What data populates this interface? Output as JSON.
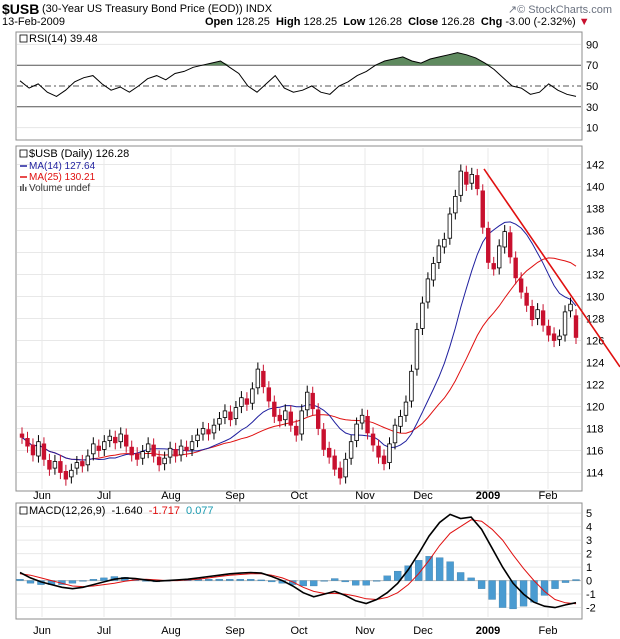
{
  "header": {
    "symbol": "$USB",
    "description": "(30-Year US Treasury Bond Price (EOD))",
    "exchange": "INDX",
    "watermark": "© StockCharts.com",
    "date": "13-Feb-2009",
    "open_label": "Open",
    "open": "128.25",
    "high_label": "High",
    "high": "128.25",
    "low_label": "Low",
    "low": "126.28",
    "close_label": "Close",
    "close": "126.28",
    "chg_label": "Chg",
    "chg": "-3.00 (-2.32%)"
  },
  "colors": {
    "up": "#000000",
    "down": "#c8102e",
    "ma14": "#1f1f9e",
    "ma25": "#e01010",
    "trendline": "#e01010",
    "rsi_fill": "#5f8a5f",
    "histogram": "#4a9bd1",
    "macd_signal": "#e01010",
    "macd_hist_legend": "#1a9ab0"
  },
  "chart_data": [
    {
      "type": "line",
      "panel": "rsi",
      "legend": "RSI(14) 39.48",
      "ylim": [
        0,
        100
      ],
      "yticks": [
        10,
        30,
        50,
        70,
        90
      ],
      "levels": [
        30,
        50,
        70
      ],
      "x": [
        0,
        3,
        6,
        9,
        12,
        15,
        18,
        21,
        24,
        27,
        30,
        33,
        36,
        39,
        42,
        45,
        48,
        51,
        54,
        57,
        60,
        63,
        66,
        69,
        72,
        75,
        78,
        81,
        84,
        87,
        90,
        93,
        96,
        99,
        102,
        105,
        108,
        111,
        114,
        117,
        120,
        123,
        126,
        129,
        132,
        135,
        138,
        141,
        144,
        147,
        150,
        153,
        156,
        159,
        162,
        165,
        168,
        171,
        174,
        177,
        180,
        183
      ],
      "values": [
        55,
        48,
        52,
        44,
        40,
        46,
        54,
        58,
        60,
        52,
        46,
        49,
        44,
        50,
        57,
        60,
        56,
        62,
        64,
        68,
        70,
        72,
        74,
        68,
        62,
        50,
        44,
        52,
        60,
        48,
        44,
        46,
        50,
        44,
        42,
        50,
        54,
        60,
        64,
        70,
        74,
        76,
        78,
        74,
        72,
        76,
        78,
        80,
        82,
        80,
        77,
        72,
        66,
        58,
        50,
        48,
        42,
        44,
        52,
        46,
        42,
        40
      ],
      "date_start": "2008-05-15"
    },
    {
      "type": "candlestick",
      "panel": "price",
      "title": "$USB (Daily) 126.28",
      "ylim": [
        112.5,
        143.5
      ],
      "yticks": [
        114,
        116,
        118,
        120,
        122,
        124,
        126,
        128,
        130,
        132,
        134,
        136,
        138,
        140,
        142
      ],
      "xticks": [
        "Jun",
        "Jul",
        "Aug",
        "Sep",
        "Oct",
        "Nov",
        "Dec",
        "2009",
        "Feb"
      ],
      "legend": [
        {
          "label": "$USB (Daily) 126.28"
        },
        {
          "label": "MA(14) 127.64"
        },
        {
          "label": "MA(25) 130.21"
        },
        {
          "label": "Volume undef"
        }
      ],
      "date_start": "2008-05-15",
      "close": [
        117.2,
        116.4,
        115.6,
        116.8,
        115.2,
        114.3,
        115.0,
        114.0,
        113.4,
        114.2,
        114.9,
        114.6,
        115.5,
        116.6,
        116.0,
        116.8,
        117.3,
        116.7,
        117.5,
        116.4,
        115.6,
        115.2,
        115.9,
        116.6,
        115.5,
        114.7,
        115.3,
        116.2,
        115.5,
        116.4,
        116.0,
        116.8,
        117.4,
        118.0,
        117.5,
        118.3,
        118.9,
        119.6,
        118.8,
        119.9,
        120.8,
        120.2,
        121.6,
        123.4,
        121.8,
        120.5,
        119.1,
        118.7,
        119.6,
        118.3,
        117.4,
        119.6,
        121.3,
        119.8,
        118.0,
        116.1,
        115.4,
        114.3,
        113.5,
        115.2,
        116.8,
        118.4,
        119.2,
        117.6,
        116.5,
        115.4,
        114.8,
        116.6,
        118.3,
        119.1,
        120.4,
        123.2,
        127.0,
        129.4,
        131.6,
        133.0,
        134.6,
        135.2,
        137.5,
        139.1,
        141.4,
        140.2,
        141.1,
        139.8,
        136.3,
        133.1,
        132.5,
        134.6,
        135.9,
        133.6,
        131.7,
        130.4,
        129.2,
        127.9,
        128.8,
        127.4,
        126.5,
        126.0,
        126.4,
        128.6,
        129.3,
        126.28
      ],
      "open": [
        117.5,
        117.1,
        116.5,
        115.5,
        116.6,
        115.1,
        114.4,
        115.0,
        114.1,
        113.6,
        114.4,
        115.0,
        114.7,
        115.7,
        116.4,
        116.1,
        116.9,
        117.2,
        116.8,
        117.4,
        116.3,
        115.7,
        115.3,
        115.9,
        116.5,
        115.4,
        114.8,
        115.4,
        116.1,
        115.6,
        116.3,
        116.1,
        116.9,
        117.5,
        117.9,
        117.6,
        118.4,
        119.0,
        119.5,
        118.9,
        120.0,
        120.7,
        120.3,
        121.7,
        123.2,
        121.7,
        120.4,
        119.2,
        118.8,
        119.5,
        118.2,
        117.5,
        119.7,
        121.2,
        119.7,
        117.9,
        116.2,
        115.5,
        114.4,
        113.6,
        115.3,
        116.9,
        118.5,
        119.1,
        117.5,
        116.4,
        115.5,
        114.9,
        116.7,
        118.2,
        119.2,
        120.5,
        123.4,
        127.1,
        129.5,
        131.5,
        133.1,
        134.5,
        135.3,
        137.6,
        139.2,
        141.3,
        140.3,
        141.0,
        139.6,
        136.2,
        133.0,
        132.6,
        134.5,
        135.8,
        133.5,
        131.6,
        130.3,
        129.1,
        128.0,
        128.7,
        127.3,
        126.6,
        126.1,
        126.5,
        128.7,
        128.25
      ]
    },
    {
      "type": "line",
      "panel": "macd",
      "legend": [
        "MACD(12,26,9)",
        "-1.640",
        "-1.717",
        "0.077"
      ],
      "ylim": [
        -2.7,
        5.6
      ],
      "yticks": [
        -2,
        -1,
        0,
        1,
        2,
        3,
        4,
        5
      ],
      "xticks": [
        "Jun",
        "Jul",
        "Aug",
        "Sep",
        "Oct",
        "Nov",
        "Dec",
        "2009",
        "Feb"
      ],
      "date_start": "2008-05-15",
      "macd": [
        0.6,
        0.2,
        -0.1,
        -0.3,
        -0.5,
        -0.6,
        -0.5,
        -0.3,
        -0.1,
        0.1,
        0.2,
        0.15,
        0.05,
        -0.05,
        0.0,
        0.05,
        0.1,
        0.2,
        0.3,
        0.4,
        0.5,
        0.55,
        0.6,
        0.55,
        0.3,
        0.0,
        -0.4,
        -0.9,
        -1.2,
        -1.0,
        -0.8,
        -1.1,
        -1.5,
        -1.7,
        -1.4,
        -0.9,
        -0.2,
        0.8,
        2.0,
        3.3,
        4.3,
        4.9,
        4.6,
        4.7,
        3.8,
        2.4,
        1.0,
        -0.2,
        -1.0,
        -1.6,
        -1.9,
        -2.0,
        -1.8,
        -1.64
      ],
      "signal": [
        0.5,
        0.4,
        0.2,
        0.0,
        -0.2,
        -0.4,
        -0.45,
        -0.4,
        -0.3,
        -0.2,
        -0.05,
        0.05,
        0.1,
        0.05,
        0.0,
        0.0,
        0.05,
        0.1,
        0.2,
        0.3,
        0.4,
        0.45,
        0.5,
        0.5,
        0.4,
        0.2,
        -0.1,
        -0.5,
        -0.8,
        -0.95,
        -0.95,
        -1.0,
        -1.15,
        -1.35,
        -1.4,
        -1.25,
        -0.9,
        -0.3,
        0.5,
        1.5,
        2.6,
        3.5,
        4.0,
        4.5,
        4.4,
        3.8,
        3.0,
        1.9,
        0.9,
        0.0,
        -0.8,
        -1.4,
        -1.65,
        -1.717
      ],
      "histogram": [
        0.1,
        -0.2,
        -0.3,
        -0.3,
        -0.3,
        -0.2,
        -0.05,
        0.1,
        0.2,
        0.3,
        0.25,
        0.1,
        -0.05,
        -0.1,
        0.0,
        0.05,
        0.05,
        0.1,
        0.1,
        0.1,
        0.1,
        0.1,
        0.1,
        0.05,
        -0.1,
        -0.2,
        -0.3,
        -0.4,
        -0.4,
        -0.05,
        0.15,
        -0.1,
        -0.35,
        -0.35,
        0.0,
        0.35,
        0.7,
        1.1,
        1.5,
        1.8,
        1.7,
        1.4,
        0.6,
        0.2,
        -0.6,
        -1.4,
        -2.0,
        -2.1,
        -1.9,
        -1.6,
        -1.1,
        -0.6,
        -0.15,
        0.077
      ]
    }
  ]
}
